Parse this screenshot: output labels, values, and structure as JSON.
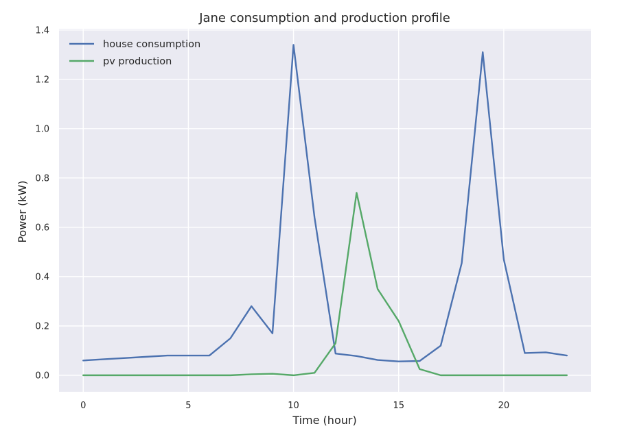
{
  "chart_data": {
    "type": "line",
    "title": "Jane consumption and production profile",
    "xlabel": "Time (hour)",
    "ylabel": "Power (kW)",
    "x": [
      0,
      1,
      2,
      3,
      4,
      5,
      6,
      7,
      8,
      9,
      10,
      11,
      12,
      13,
      14,
      15,
      16,
      17,
      18,
      19,
      20,
      21,
      22,
      23
    ],
    "xlim": [
      -1.15,
      24.15
    ],
    "ylim": [
      -0.067,
      1.405
    ],
    "xticks": [
      0,
      5,
      10,
      15,
      20
    ],
    "xtick_labels": [
      "0",
      "5",
      "10",
      "15",
      "20"
    ],
    "yticks": [
      0.0,
      0.2,
      0.4,
      0.6,
      0.8,
      1.0,
      1.2,
      1.4
    ],
    "ytick_labels": [
      "0.0",
      "0.2",
      "0.4",
      "0.6",
      "0.8",
      "1.0",
      "1.2",
      "1.4"
    ],
    "grid": true,
    "legend_position": "top-left",
    "background_color": "#eaeaf2",
    "grid_color": "#ffffff",
    "series": [
      {
        "name": "house consumption",
        "color": "#4c72b0",
        "values": [
          0.06,
          0.065,
          0.07,
          0.075,
          0.08,
          0.08,
          0.08,
          0.15,
          0.28,
          0.17,
          1.34,
          0.64,
          0.088,
          0.078,
          0.062,
          0.056,
          0.058,
          0.12,
          0.455,
          1.31,
          0.47,
          0.09,
          0.093,
          0.08
        ]
      },
      {
        "name": "pv production",
        "color": "#55a868",
        "values": [
          0.0,
          0.0,
          0.0,
          0.0,
          0.0,
          0.0,
          0.0,
          0.0,
          0.004,
          0.006,
          0.0,
          0.01,
          0.13,
          0.74,
          0.35,
          0.22,
          0.025,
          0.0,
          0.0,
          0.0,
          0.0,
          0.0,
          0.0,
          0.0
        ]
      }
    ]
  }
}
